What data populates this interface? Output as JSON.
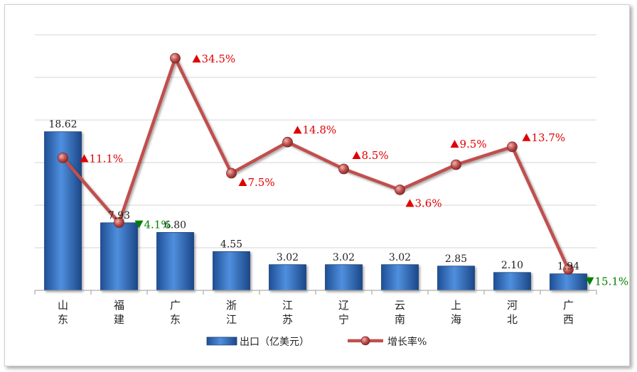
{
  "chart_data": {
    "type": "bar+line",
    "categories": [
      [
        "山",
        "东"
      ],
      [
        "福",
        "建"
      ],
      [
        "广",
        "东"
      ],
      [
        "浙",
        "江"
      ],
      [
        "江",
        "苏"
      ],
      [
        "辽",
        "宁"
      ],
      [
        "云",
        "南"
      ],
      [
        "上",
        "海"
      ],
      [
        "河",
        "北"
      ],
      [
        "广",
        "西"
      ]
    ],
    "bars": {
      "name": "出口（亿美元）",
      "values": [
        18.62,
        7.93,
        6.8,
        4.55,
        3.02,
        3.02,
        3.02,
        2.85,
        2.1,
        1.94
      ],
      "labels": [
        "18.62",
        "7.93",
        "6.80",
        "4.55",
        "3.02",
        "3.02",
        "3.02",
        "2.85",
        "2.10",
        "1.94"
      ],
      "color": "#3a7bc8"
    },
    "line": {
      "name": "增长率%",
      "values": [
        11.1,
        -4.1,
        34.5,
        7.5,
        14.8,
        8.5,
        3.6,
        9.5,
        13.7,
        -15.1
      ],
      "labels": [
        "11.1%",
        "4.1%",
        "34.5%",
        "7.5%",
        "14.8%",
        "8.5%",
        "3.6%",
        "9.5%",
        "13.7%",
        "15.1%"
      ],
      "color": "#c0504d"
    },
    "up_color": "#e00000",
    "down_color": "#008000",
    "grid": true
  }
}
